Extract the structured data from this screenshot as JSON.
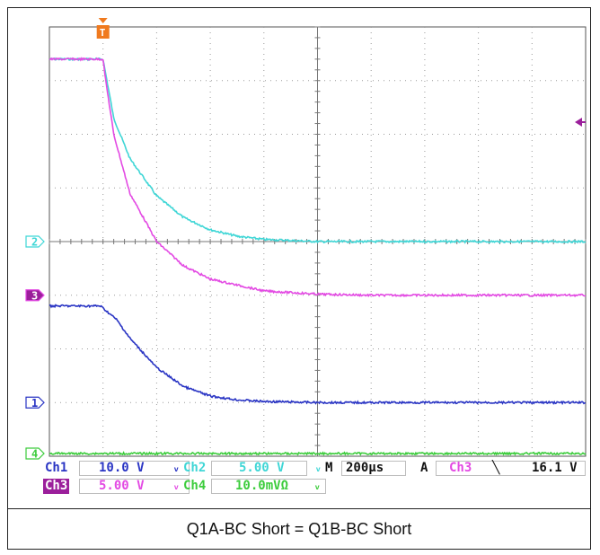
{
  "chart_data": {
    "type": "line",
    "title": "",
    "xlabel": "",
    "ylabel": "",
    "x_range_us": [
      0,
      2000
    ],
    "y_range_div": [
      -4,
      4
    ],
    "grid": true,
    "trigger_marker": "T",
    "trigger_position_us": 200,
    "series": [
      {
        "channel": "2",
        "color": "#3fd6d6",
        "ground_div": 0,
        "x": [
          0,
          200,
          240,
          300,
          400,
          500,
          600,
          700,
          800,
          1000,
          1200,
          1500,
          2000
        ],
        "y": [
          3.4,
          3.4,
          2.3,
          1.55,
          0.85,
          0.45,
          0.22,
          0.1,
          0.04,
          0.0,
          0.0,
          0.0,
          0.0
        ]
      },
      {
        "channel": "3",
        "color": "#e34ae3",
        "ground_div": -1,
        "x": [
          0,
          200,
          210,
          240,
          300,
          400,
          500,
          600,
          800,
          1000,
          1200,
          1500,
          2000
        ],
        "y": [
          3.4,
          3.4,
          3.0,
          2.0,
          0.9,
          0.0,
          -0.45,
          -0.7,
          -0.92,
          -0.98,
          -1.0,
          -1.0,
          -1.0
        ]
      },
      {
        "channel": "1",
        "color": "#2a35c4",
        "ground_div": -3,
        "x": [
          0,
          190,
          250,
          300,
          400,
          500,
          600,
          700,
          800,
          1000,
          1200,
          1500,
          2000
        ],
        "y": [
          -1.2,
          -1.2,
          -1.45,
          -1.8,
          -2.35,
          -2.7,
          -2.88,
          -2.95,
          -2.98,
          -3.0,
          -3.0,
          -3.0,
          -3.0
        ]
      },
      {
        "channel": "4",
        "color": "#3ccc3c",
        "ground_div": -3.95,
        "x": [
          0,
          2000
        ],
        "y": [
          -3.95,
          -3.95
        ]
      }
    ],
    "readout": {
      "ch1": {
        "label": "Ch1",
        "value": "10.0 V",
        "symbol": "ᵥ"
      },
      "ch2": {
        "label": "Ch2",
        "value": "5.00 V",
        "symbol": "ᵥ"
      },
      "ch3": {
        "label": "Ch3",
        "value": "5.00 V",
        "symbol": "ᵥ"
      },
      "ch4": {
        "label": "Ch4",
        "value": "10.0mVΩ",
        "symbol": "ᵥ"
      },
      "timebase": {
        "label": "M",
        "value": "200µs"
      },
      "trigger": {
        "mode": "A",
        "source": "Ch3",
        "slope": "╲",
        "level": "16.1 V"
      }
    }
  },
  "caption": "Q1A-BC Short = Q1B-BC Short",
  "colors": {
    "ch1": "#2a35c4",
    "ch2": "#3fd6d6",
    "ch3": "#e34ae3",
    "ch4": "#3ccc3c",
    "trigger": "#f07a1e",
    "grid": "#9a9a9a"
  }
}
